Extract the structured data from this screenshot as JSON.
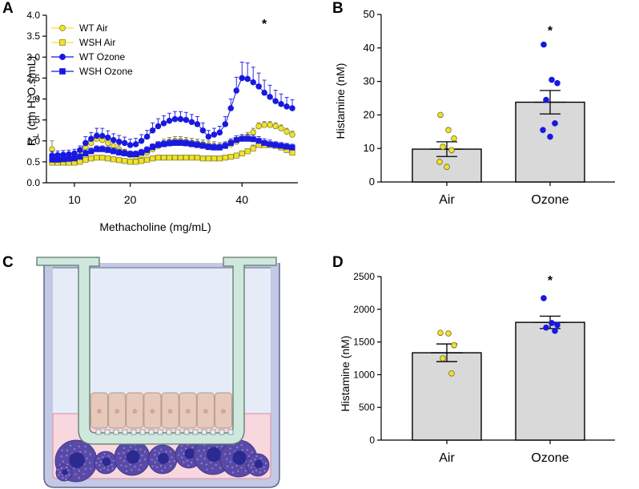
{
  "panel_labels": {
    "a": "A",
    "b": "B",
    "c": "C",
    "d": "D"
  },
  "chart_data": [
    {
      "panel": "A",
      "type": "line",
      "title": "",
      "xlabel": "Methacholine (mg/mL)",
      "ylabel_main": "R",
      "ylabel_sub": "L",
      "ylabel_rest_a": " (cm H",
      "ylabel_sub2": "2",
      "ylabel_rest_b": "O.s/mL)",
      "xlim": [
        5,
        50
      ],
      "ylim": [
        0,
        4.0
      ],
      "xticks": [
        "10",
        "20",
        "40"
      ],
      "xtick_values": [
        10,
        20,
        40
      ],
      "yticks": [
        "0.0",
        "0.5",
        "1.0",
        "1.5",
        "2.0",
        "2.5",
        "3.0",
        "3.5",
        "4.0"
      ],
      "ytick_values": [
        0,
        0.5,
        1.0,
        1.5,
        2.0,
        2.5,
        3.0,
        3.5,
        4.0
      ],
      "significance": "*",
      "significance_at": [
        44,
        3.85
      ],
      "legend_position": "top-left",
      "series": [
        {
          "name": "WT Air",
          "marker": "circle",
          "color": "#f2e224",
          "edge": "#7a7a3a",
          "x": [
            6,
            7,
            8,
            9,
            10,
            11,
            12,
            13,
            14,
            15,
            16,
            17,
            18,
            19,
            20,
            21,
            22,
            23,
            24,
            25,
            26,
            27,
            28,
            29,
            30,
            31,
            32,
            33,
            34,
            35,
            36,
            37,
            38,
            39,
            40,
            41,
            42,
            43,
            44,
            45,
            46,
            47,
            48,
            49
          ],
          "y": [
            0.8,
            0.55,
            0.56,
            0.58,
            0.6,
            0.62,
            0.85,
            0.95,
            1.05,
            1.02,
            0.95,
            0.88,
            0.8,
            0.72,
            0.66,
            0.62,
            0.66,
            0.72,
            0.8,
            0.88,
            0.94,
            0.98,
            1.0,
            1.0,
            0.98,
            0.96,
            0.94,
            0.92,
            0.9,
            0.88,
            0.86,
            0.88,
            0.92,
            0.98,
            1.05,
            1.1,
            1.2,
            1.35,
            1.38,
            1.38,
            1.35,
            1.3,
            1.22,
            1.15
          ],
          "err": [
            0.2,
            0.08,
            0.08,
            0.08,
            0.08,
            0.08,
            0.12,
            0.12,
            0.14,
            0.14,
            0.12,
            0.1,
            0.1,
            0.08,
            0.08,
            0.08,
            0.08,
            0.08,
            0.1,
            0.1,
            0.1,
            0.1,
            0.1,
            0.1,
            0.1,
            0.1,
            0.1,
            0.1,
            0.1,
            0.1,
            0.1,
            0.1,
            0.1,
            0.1,
            0.1,
            0.1,
            0.1,
            0.08,
            0.08,
            0.08,
            0.08,
            0.08,
            0.08,
            0.08
          ]
        },
        {
          "name": "WSH Air",
          "marker": "square",
          "color": "#f2e224",
          "edge": "#7a7a3a",
          "x": [
            6,
            7,
            8,
            9,
            10,
            11,
            12,
            13,
            14,
            15,
            16,
            17,
            18,
            19,
            20,
            21,
            22,
            23,
            24,
            25,
            26,
            27,
            28,
            29,
            30,
            31,
            32,
            33,
            34,
            35,
            36,
            37,
            38,
            39,
            40,
            41,
            42,
            43,
            44,
            45,
            46,
            47,
            48,
            49
          ],
          "y": [
            0.48,
            0.48,
            0.48,
            0.48,
            0.48,
            0.5,
            0.55,
            0.58,
            0.6,
            0.6,
            0.58,
            0.56,
            0.54,
            0.52,
            0.5,
            0.5,
            0.52,
            0.55,
            0.58,
            0.6,
            0.6,
            0.6,
            0.6,
            0.6,
            0.6,
            0.6,
            0.6,
            0.58,
            0.58,
            0.58,
            0.58,
            0.6,
            0.62,
            0.65,
            0.7,
            0.75,
            0.82,
            0.9,
            0.9,
            0.9,
            0.88,
            0.84,
            0.78,
            0.72
          ],
          "err": [
            0.06,
            0.06,
            0.06,
            0.06,
            0.06,
            0.06,
            0.06,
            0.06,
            0.06,
            0.06,
            0.06,
            0.06,
            0.06,
            0.06,
            0.06,
            0.06,
            0.06,
            0.06,
            0.06,
            0.06,
            0.06,
            0.06,
            0.06,
            0.06,
            0.06,
            0.06,
            0.06,
            0.06,
            0.06,
            0.06,
            0.06,
            0.06,
            0.06,
            0.06,
            0.06,
            0.06,
            0.08,
            0.08,
            0.08,
            0.08,
            0.08,
            0.08,
            0.08,
            0.08
          ]
        },
        {
          "name": "WT Ozone",
          "marker": "circle",
          "color": "#1818e0",
          "edge": "#1818e0",
          "x": [
            6,
            7,
            8,
            9,
            10,
            11,
            12,
            13,
            14,
            15,
            16,
            17,
            18,
            19,
            20,
            21,
            22,
            23,
            24,
            25,
            26,
            27,
            28,
            29,
            30,
            31,
            32,
            33,
            34,
            35,
            36,
            37,
            38,
            39,
            40,
            41,
            42,
            43,
            44,
            45,
            46,
            47,
            48,
            49
          ],
          "y": [
            0.65,
            0.66,
            0.67,
            0.68,
            0.7,
            0.78,
            0.95,
            1.05,
            1.12,
            1.12,
            1.08,
            1.02,
            0.98,
            0.95,
            0.9,
            0.92,
            1.0,
            1.1,
            1.25,
            1.35,
            1.42,
            1.48,
            1.52,
            1.52,
            1.5,
            1.45,
            1.4,
            1.25,
            1.1,
            1.15,
            1.2,
            1.4,
            1.78,
            2.2,
            2.5,
            2.48,
            2.4,
            2.3,
            2.15,
            2.05,
            1.95,
            1.88,
            1.82,
            1.78
          ],
          "err": [
            0.1,
            0.1,
            0.1,
            0.1,
            0.1,
            0.1,
            0.15,
            0.15,
            0.18,
            0.18,
            0.16,
            0.15,
            0.15,
            0.14,
            0.14,
            0.14,
            0.15,
            0.15,
            0.18,
            0.18,
            0.18,
            0.18,
            0.18,
            0.18,
            0.18,
            0.18,
            0.18,
            0.18,
            0.15,
            0.15,
            0.15,
            0.18,
            0.22,
            0.32,
            0.38,
            0.38,
            0.36,
            0.32,
            0.3,
            0.28,
            0.26,
            0.24,
            0.22,
            0.2
          ]
        },
        {
          "name": "WSH Ozone",
          "marker": "square",
          "color": "#1818e0",
          "edge": "#1818e0",
          "x": [
            6,
            7,
            8,
            9,
            10,
            11,
            12,
            13,
            14,
            15,
            16,
            17,
            18,
            19,
            20,
            21,
            22,
            23,
            24,
            25,
            26,
            27,
            28,
            29,
            30,
            31,
            32,
            33,
            34,
            35,
            36,
            37,
            38,
            39,
            40,
            41,
            42,
            43,
            44,
            45,
            46,
            47,
            48,
            49
          ],
          "y": [
            0.55,
            0.55,
            0.56,
            0.57,
            0.58,
            0.62,
            0.7,
            0.75,
            0.8,
            0.8,
            0.78,
            0.75,
            0.72,
            0.7,
            0.68,
            0.68,
            0.72,
            0.78,
            0.85,
            0.9,
            0.92,
            0.94,
            0.95,
            0.95,
            0.94,
            0.92,
            0.9,
            0.88,
            0.85,
            0.84,
            0.84,
            0.88,
            0.95,
            1.02,
            1.05,
            1.05,
            1.04,
            1.0,
            0.95,
            0.92,
            0.9,
            0.88,
            0.86,
            0.84
          ],
          "err": [
            0.06,
            0.06,
            0.06,
            0.06,
            0.06,
            0.06,
            0.08,
            0.08,
            0.08,
            0.08,
            0.08,
            0.08,
            0.08,
            0.08,
            0.08,
            0.08,
            0.08,
            0.08,
            0.08,
            0.08,
            0.08,
            0.08,
            0.08,
            0.08,
            0.08,
            0.08,
            0.08,
            0.08,
            0.08,
            0.08,
            0.08,
            0.08,
            0.1,
            0.1,
            0.1,
            0.1,
            0.1,
            0.1,
            0.1,
            0.1,
            0.08,
            0.08,
            0.08,
            0.08
          ]
        }
      ]
    },
    {
      "panel": "B",
      "type": "bar",
      "title": "",
      "xlabel": "",
      "ylabel": "Histamine (nM)",
      "categories": [
        "Air",
        "Ozone"
      ],
      "values": [
        9.8,
        23.8
      ],
      "sem": [
        2.2,
        3.5
      ],
      "bar_color": "#d9d9d9",
      "point_colors": [
        "#f2e224",
        "#1818e0"
      ],
      "points": [
        [
          20,
          15.5,
          13,
          10.5,
          9.5,
          6,
          4.5
        ],
        [
          41,
          30.5,
          29.5,
          24.5,
          17.5,
          15.5,
          13.5
        ]
      ],
      "ylim": [
        0,
        50
      ],
      "yticks": [
        "0",
        "10",
        "20",
        "30",
        "40",
        "50"
      ],
      "ytick_values": [
        0,
        10,
        20,
        30,
        40,
        50
      ],
      "significance": "*",
      "significance_on": "Ozone"
    },
    {
      "panel": "D",
      "type": "bar",
      "title": "",
      "xlabel": "",
      "ylabel": "Histamine (nM)",
      "categories": [
        "Air",
        "Ozone"
      ],
      "values": [
        1335,
        1800
      ],
      "sem": [
        135,
        95
      ],
      "bar_color": "#d9d9d9",
      "point_colors": [
        "#f2e224",
        "#1818e0"
      ],
      "points": [
        [
          1640,
          1630,
          1450,
          1250,
          1020
        ],
        [
          2170,
          1790,
          1760,
          1720,
          1670
        ]
      ],
      "ylim": [
        0,
        2500
      ],
      "yticks": [
        "0",
        "500",
        "1000",
        "1500",
        "2000",
        "2500"
      ],
      "ytick_values": [
        0,
        500,
        1000,
        1500,
        2000,
        2500
      ],
      "significance": "*",
      "significance_on": "Ozone"
    }
  ],
  "diagram_c": {
    "label": "Transwell co-culture schematic",
    "upper_cells_count": 8,
    "lower_cells_count": 9,
    "colors": {
      "outer_well": "#c3c8e4",
      "outer_well_edge": "#5d6590",
      "upper_medium": "#e6ebf8",
      "lower_medium": "#f8d7df",
      "insert_wall": "#cfe7dc",
      "insert_edge": "#5a7a6a",
      "epithelium": "#e7c9bc",
      "epithelium_edge": "#b49585",
      "nucleus_small": "#d5a49c",
      "mast_cell": "#5a4aa8",
      "mast_cell_dots": "#8f86d0",
      "mast_nucleus": "#2a2a90"
    }
  }
}
